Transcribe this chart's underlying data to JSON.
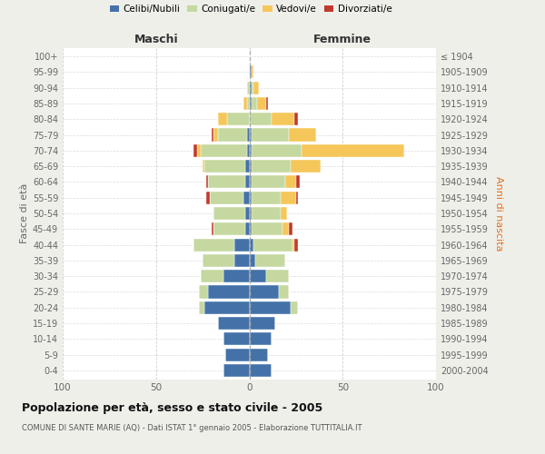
{
  "age_groups": [
    "0-4",
    "5-9",
    "10-14",
    "15-19",
    "20-24",
    "25-29",
    "30-34",
    "35-39",
    "40-44",
    "45-49",
    "50-54",
    "55-59",
    "60-64",
    "65-69",
    "70-74",
    "75-79",
    "80-84",
    "85-89",
    "90-94",
    "95-99",
    "100+"
  ],
  "birth_years": [
    "2000-2004",
    "1995-1999",
    "1990-1994",
    "1985-1989",
    "1980-1984",
    "1975-1979",
    "1970-1974",
    "1965-1969",
    "1960-1964",
    "1955-1959",
    "1950-1954",
    "1945-1949",
    "1940-1944",
    "1935-1939",
    "1930-1934",
    "1925-1929",
    "1920-1924",
    "1915-1919",
    "1910-1914",
    "1905-1909",
    "≤ 1904"
  ],
  "males": {
    "celibi": [
      14,
      13,
      14,
      17,
      24,
      22,
      14,
      8,
      8,
      2,
      2,
      3,
      2,
      2,
      1,
      1,
      0,
      0,
      0,
      0,
      0
    ],
    "coniugati": [
      0,
      0,
      0,
      0,
      3,
      5,
      12,
      17,
      22,
      17,
      17,
      18,
      20,
      22,
      25,
      16,
      12,
      1,
      1,
      0,
      0
    ],
    "vedovi": [
      0,
      0,
      0,
      0,
      0,
      0,
      0,
      0,
      0,
      0,
      0,
      0,
      0,
      1,
      2,
      2,
      5,
      2,
      0,
      0,
      0
    ],
    "divorziati": [
      0,
      0,
      0,
      0,
      0,
      0,
      0,
      0,
      0,
      1,
      0,
      2,
      1,
      0,
      2,
      1,
      0,
      0,
      0,
      0,
      0
    ]
  },
  "females": {
    "nubili": [
      12,
      10,
      12,
      14,
      22,
      16,
      9,
      3,
      2,
      1,
      1,
      1,
      1,
      1,
      1,
      1,
      0,
      1,
      1,
      1,
      0
    ],
    "coniugate": [
      0,
      0,
      0,
      0,
      4,
      5,
      12,
      16,
      21,
      17,
      16,
      16,
      18,
      21,
      27,
      20,
      12,
      3,
      1,
      0,
      0
    ],
    "vedove": [
      0,
      0,
      0,
      0,
      0,
      0,
      0,
      0,
      1,
      3,
      3,
      8,
      6,
      16,
      55,
      15,
      12,
      5,
      3,
      1,
      0
    ],
    "divorziate": [
      0,
      0,
      0,
      0,
      0,
      0,
      0,
      0,
      2,
      2,
      0,
      1,
      2,
      0,
      0,
      0,
      2,
      1,
      0,
      0,
      0
    ]
  },
  "colors": {
    "celibi": "#4472a8",
    "coniugati": "#c5d8a0",
    "vedovi": "#f5c75a",
    "divorziati": "#c0392b"
  },
  "title": "Popolazione per età, sesso e stato civile - 2005",
  "subtitle": "COMUNE DI SANTE MARIE (AQ) - Dati ISTAT 1° gennaio 2005 - Elaborazione TUTTITALIA.IT",
  "ylabel_left": "Fasce di età",
  "ylabel_right": "Anni di nascita",
  "xlabel_left": "Maschi",
  "xlabel_right": "Femmine",
  "xlim": 100,
  "background_color": "#efefea",
  "plot_background": "#ffffff"
}
